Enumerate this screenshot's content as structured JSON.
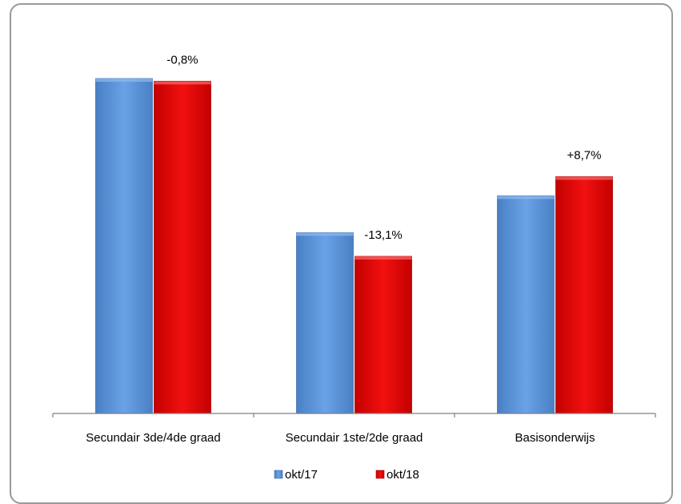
{
  "chart_data": {
    "type": "bar",
    "categories": [
      "Secundair 3de/4de graad",
      "Secundair 1ste/2de graad",
      "Basisonderwijs"
    ],
    "series": [
      {
        "name": "okt/17",
        "values": [
          100,
          54,
          65
        ],
        "color": "#5b95dc"
      },
      {
        "name": "okt/18",
        "values": [
          99.2,
          46.9,
          70.7
        ],
        "color": "#e80707"
      }
    ],
    "data_labels": [
      "-0,8%",
      "-13,1%",
      "+8,7%"
    ],
    "ylim": [
      0,
      100
    ],
    "grid": false,
    "legend": "bottom",
    "title": "",
    "xlabel": "",
    "ylabel": ""
  }
}
